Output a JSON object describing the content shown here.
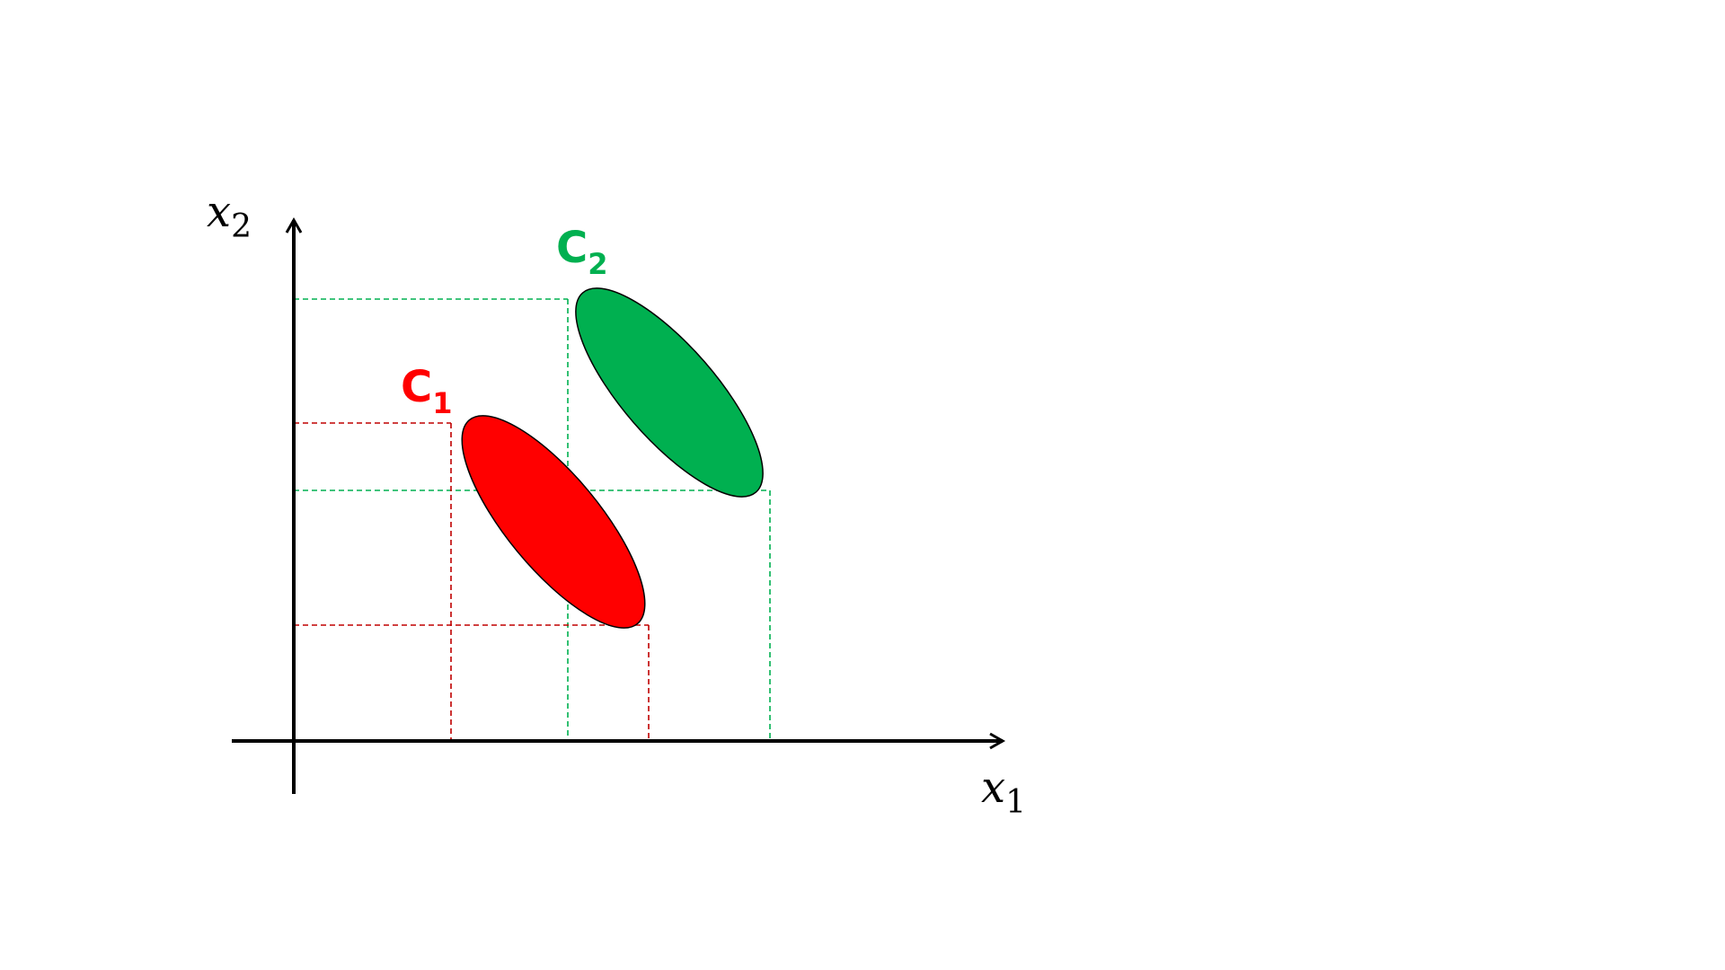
{
  "axes": {
    "x_label": {
      "main": "x",
      "sub": "1"
    },
    "y_label": {
      "main": "x",
      "sub": "2"
    }
  },
  "classes": [
    {
      "id": "c1",
      "label": {
        "main": "C",
        "sub": "1"
      },
      "color": "#ff0000",
      "outline": "#000000"
    },
    {
      "id": "c2",
      "label": {
        "main": "C",
        "sub": "2"
      },
      "color": "#00b050",
      "outline": "#000000"
    }
  ],
  "colors": {
    "axis": "#000000",
    "c1_guide": "#c00000",
    "c2_guide": "#00b050"
  }
}
